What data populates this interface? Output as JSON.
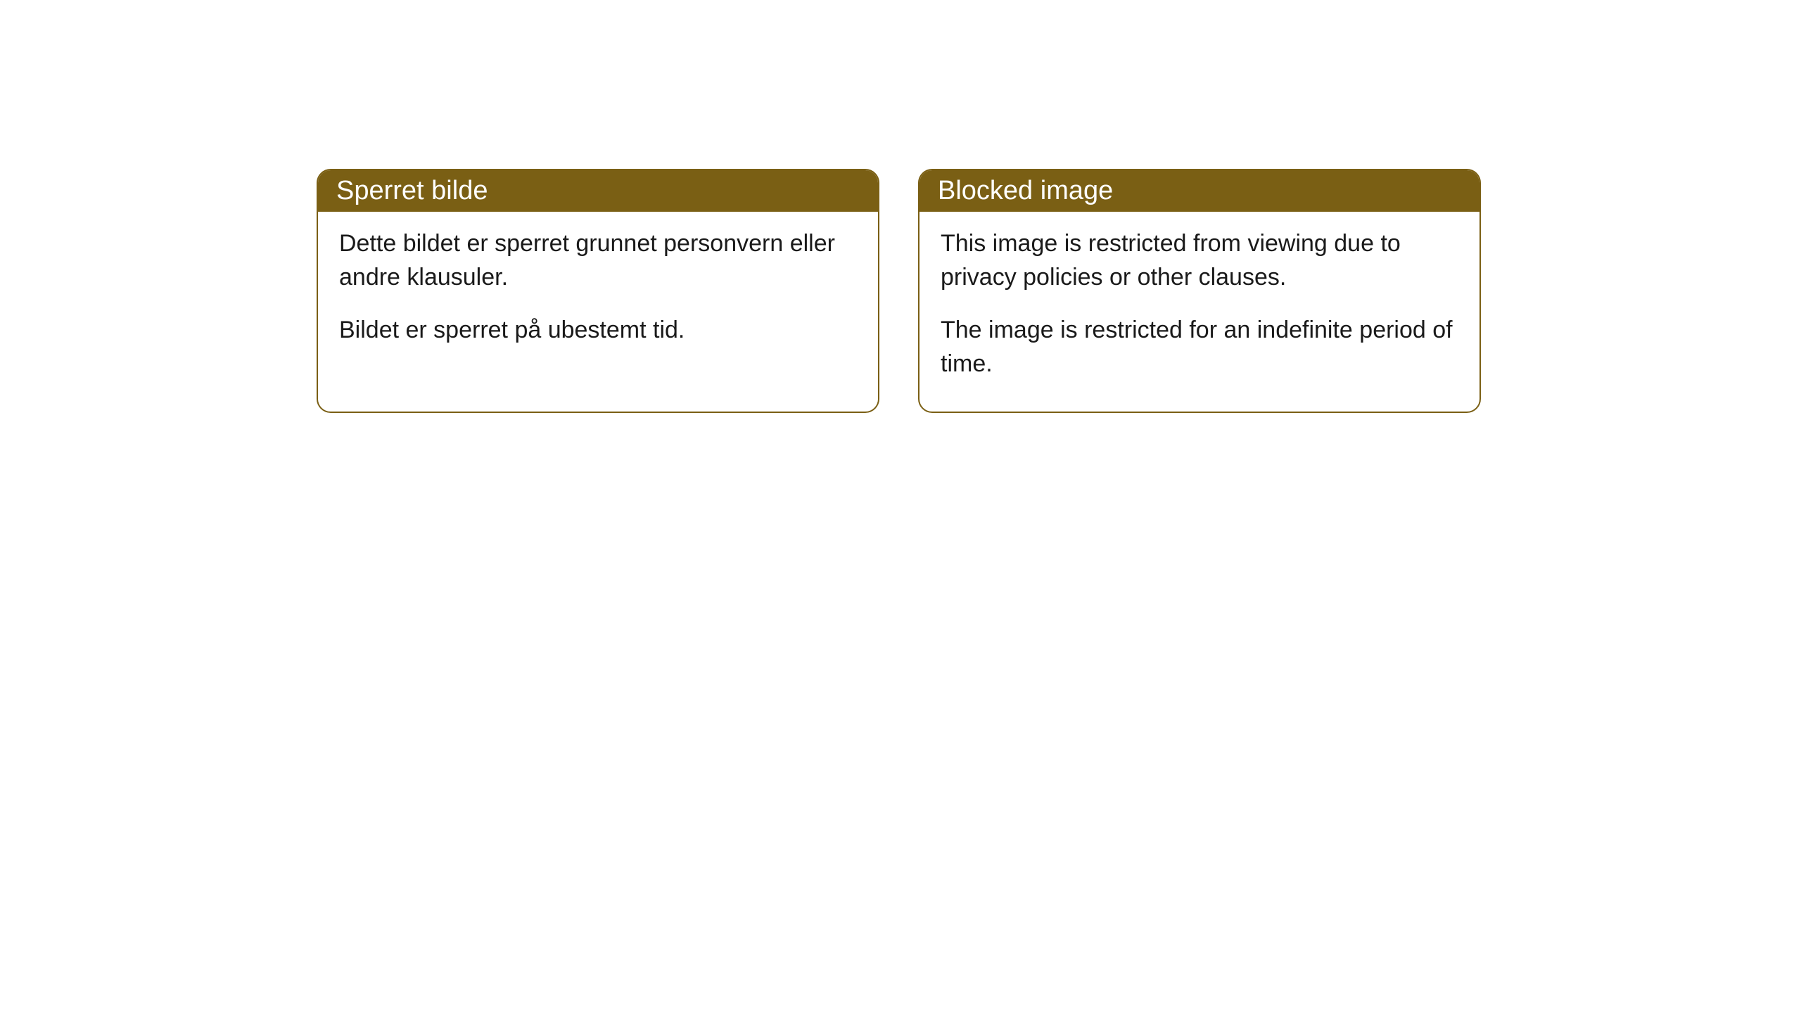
{
  "cards": [
    {
      "title": "Sperret bilde",
      "paragraph1": "Dette bildet er sperret grunnet personvern eller andre klausuler.",
      "paragraph2": "Bildet er sperret på ubestemt tid."
    },
    {
      "title": "Blocked image",
      "paragraph1": "This image is restricted from viewing due to privacy policies or other clauses.",
      "paragraph2": "The image is restricted for an indefinite period of time."
    }
  ],
  "styling": {
    "header_background": "#7a5f14",
    "header_text_color": "#ffffff",
    "border_color": "#7a5f14",
    "body_background": "#ffffff",
    "body_text_color": "#1a1a1a",
    "border_radius": 20,
    "header_fontsize": 38,
    "body_fontsize": 34
  }
}
